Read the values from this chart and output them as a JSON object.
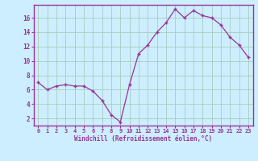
{
  "x": [
    0,
    1,
    2,
    3,
    4,
    5,
    6,
    7,
    8,
    9,
    10,
    11,
    12,
    13,
    14,
    15,
    16,
    17,
    18,
    19,
    20,
    21,
    22,
    23
  ],
  "y": [
    7.0,
    6.0,
    6.5,
    6.7,
    6.5,
    6.5,
    5.8,
    4.5,
    2.5,
    1.5,
    6.7,
    11.0,
    12.2,
    14.0,
    15.3,
    17.2,
    16.0,
    17.0,
    16.3,
    16.0,
    15.0,
    13.3,
    12.2,
    10.5
  ],
  "line_color": "#993399",
  "marker": "+",
  "bg_color": "#cceeff",
  "grid_color": "#aaccbb",
  "xlabel": "Windchill (Refroidissement éolien,°C)",
  "yticks": [
    2,
    4,
    6,
    8,
    10,
    12,
    14,
    16
  ],
  "xlim": [
    -0.5,
    23.5
  ],
  "ylim": [
    1.0,
    17.8
  ],
  "xticks": [
    0,
    1,
    2,
    3,
    4,
    5,
    6,
    7,
    8,
    9,
    10,
    11,
    12,
    13,
    14,
    15,
    16,
    17,
    18,
    19,
    20,
    21,
    22,
    23
  ],
  "tick_color": "#993399",
  "label_color": "#993399",
  "border_color": "#993399",
  "spine_color": "#993399"
}
